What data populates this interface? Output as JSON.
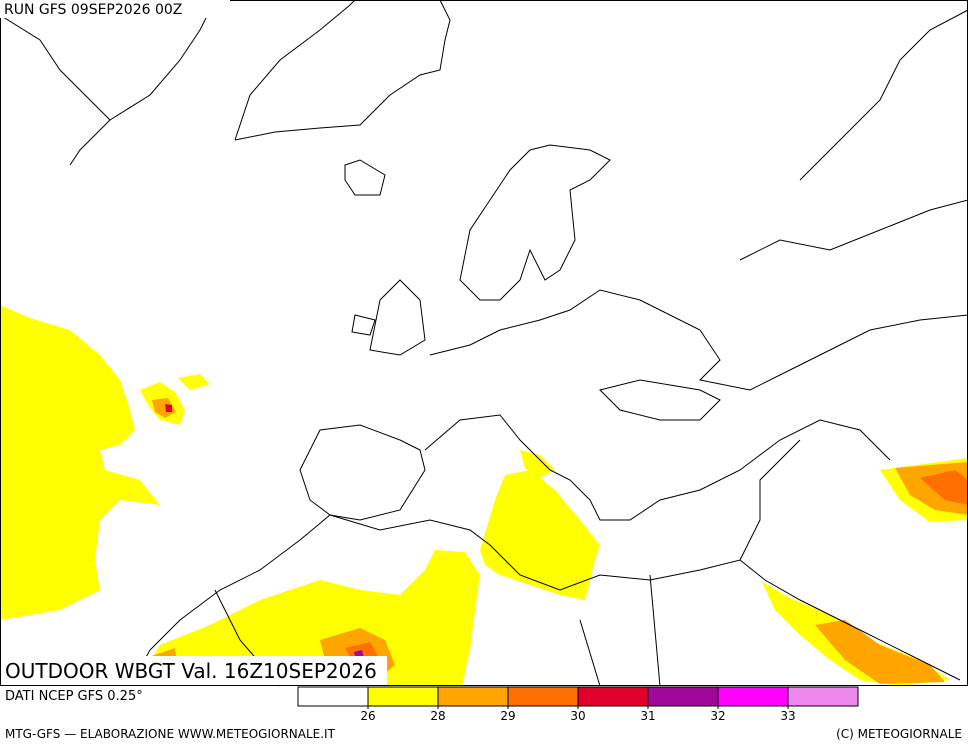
{
  "header": {
    "run": "RUN GFS 09SEP2026 00Z"
  },
  "title": "OUTDOOR WBGT Val. 16Z10SEP2026",
  "source": "DATI NCEP GFS 0.25°",
  "legend": {
    "colors": [
      "#ffffff",
      "#ffff00",
      "#ffa500",
      "#ff7000",
      "#e0002a",
      "#a0089a",
      "#ff00ff",
      "#ee88ee"
    ],
    "ticks": [
      26,
      28,
      29,
      30,
      31,
      32,
      33
    ]
  },
  "footer": {
    "left": "MTG-GFS — ELABORAZIONE WWW.METEOGIORNALE.IT",
    "right": "(C) METEOGIORNALE"
  }
}
